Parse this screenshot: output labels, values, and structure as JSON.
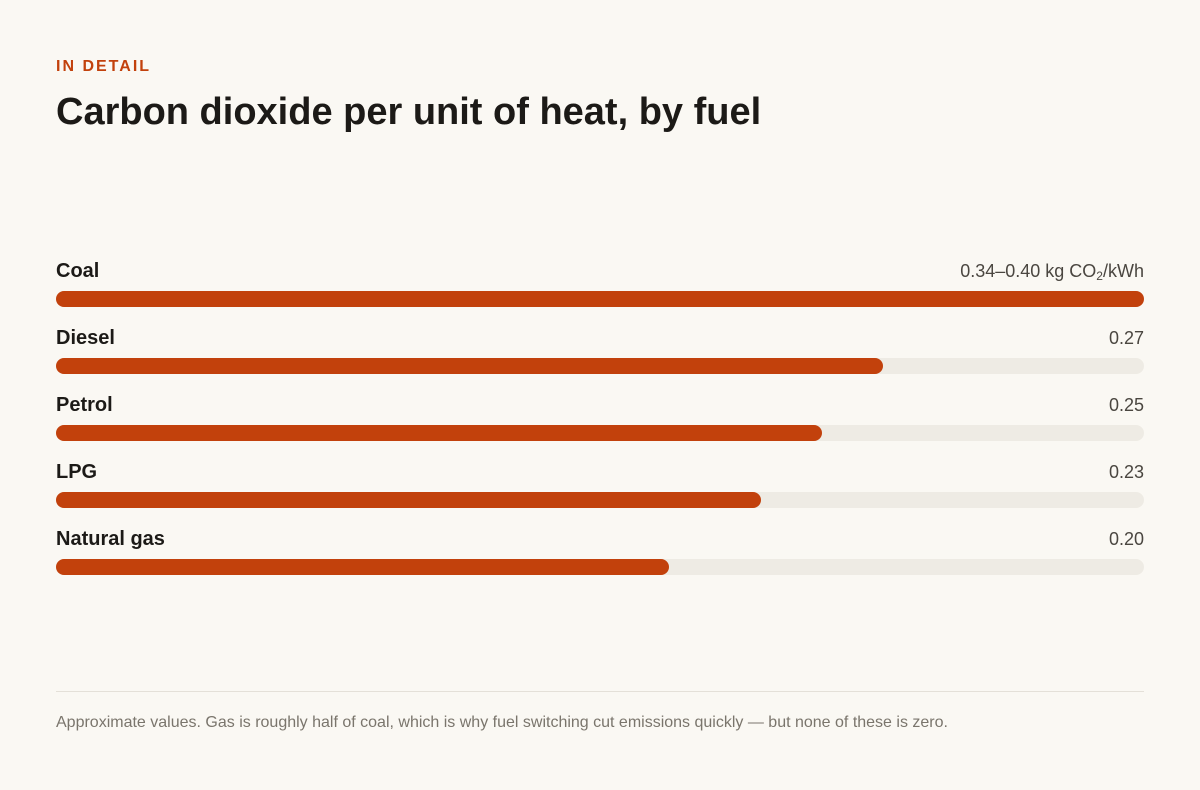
{
  "header": {
    "kicker": "IN DETAIL",
    "title": "Carbon dioxide per unit of heat, by fuel"
  },
  "chart_data": {
    "type": "bar",
    "orientation": "horizontal",
    "title": "Carbon dioxide per unit of heat, by fuel",
    "unit": "kg CO₂/kWh",
    "xlim": [
      0,
      0.355
    ],
    "grid": false,
    "legend": "none",
    "colors": {
      "bar": "#c2410c",
      "track": "#eeebe4"
    },
    "categories": [
      "Coal",
      "Diesel",
      "Petrol",
      "LPG",
      "Natural gas"
    ],
    "values": [
      0.355,
      0.27,
      0.25,
      0.23,
      0.2
    ],
    "value_labels": [
      {
        "text": "0.34–0.40 kg CO",
        "sub": "2",
        "suffix": "/kWh"
      },
      {
        "text": "0.27",
        "sub": "",
        "suffix": ""
      },
      {
        "text": "0.25",
        "sub": "",
        "suffix": ""
      },
      {
        "text": "0.23",
        "sub": "",
        "suffix": ""
      },
      {
        "text": "0.20",
        "sub": "",
        "suffix": ""
      }
    ]
  },
  "footer": {
    "note": "Approximate values. Gas is roughly half of coal, which is why fuel switching cut emissions quickly — but none of these is zero."
  }
}
